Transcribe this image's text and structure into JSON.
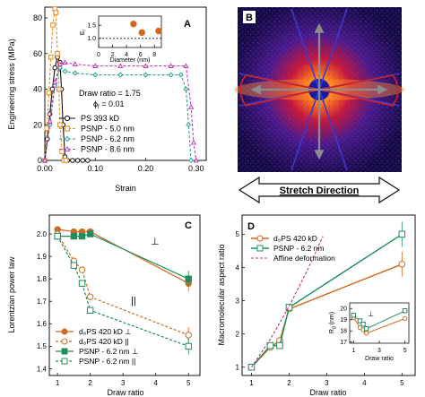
{
  "panel_letters": {
    "a": "A",
    "b": "B",
    "c": "C",
    "d": "D"
  },
  "stretch_direction": "Stretch Direction",
  "colors": {
    "ps": "#111111",
    "psnp50": "#e88a1a",
    "psnp62": "#2aa08e",
    "psnp86": "#c43bb7",
    "orange": "#d2691e",
    "green": "#1e8f5a",
    "magenta": "#c0307a",
    "arrow_gray": "#8c8c8c",
    "ellipse_red": "#d42020"
  },
  "chart_data": [
    {
      "id": "A",
      "type": "line",
      "xlabel": "Strain",
      "ylabel": "Engineering stress (MPa)",
      "xlim": [
        0.0,
        0.32
      ],
      "ylim": [
        0,
        85
      ],
      "xticks": [
        "0.00",
        "0.10",
        "0.20",
        "0.30"
      ],
      "yticks": [
        "0",
        "20",
        "40",
        "60",
        "80"
      ],
      "annotation": [
        "Draw ratio = 1.75",
        "ϕ_f = 0.01"
      ],
      "series": [
        {
          "name": "PS 393 kD",
          "marker": "circle-open",
          "x": [
            0,
            0.005,
            0.01,
            0.015,
            0.02,
            0.025,
            0.03,
            0.033,
            0.036,
            0.04,
            0.045,
            0.055,
            0.065,
            0.075,
            0.085
          ],
          "y": [
            0,
            12,
            26,
            40,
            52,
            58,
            55,
            40,
            20,
            2,
            0,
            0,
            0,
            0,
            0
          ]
        },
        {
          "name": "PSNP - 5.0 nm",
          "marker": "square-open",
          "x": [
            0,
            0.004,
            0.008,
            0.012,
            0.016,
            0.02,
            0.022,
            0.025,
            0.028,
            0.03,
            0.034,
            0.038,
            0.042
          ],
          "y": [
            0,
            18,
            38,
            58,
            76,
            85,
            83,
            60,
            40,
            20,
            5,
            0,
            0
          ]
        },
        {
          "name": "PSNP - 6.2 nm",
          "marker": "diamond-open",
          "x": [
            0,
            0.01,
            0.02,
            0.03,
            0.04,
            0.06,
            0.1,
            0.15,
            0.2,
            0.25,
            0.27,
            0.28,
            0.285,
            0.29
          ],
          "y": [
            0,
            20,
            42,
            52,
            50,
            49,
            48,
            48,
            48,
            48,
            48,
            40,
            20,
            0
          ]
        },
        {
          "name": "PSNP - 8.6 nm",
          "marker": "triangle-open",
          "x": [
            0,
            0.01,
            0.02,
            0.03,
            0.04,
            0.06,
            0.1,
            0.15,
            0.2,
            0.25,
            0.28,
            0.29,
            0.295,
            0.3
          ],
          "y": [
            0,
            22,
            44,
            54,
            55,
            54,
            53,
            53,
            53,
            53,
            53,
            30,
            10,
            0
          ]
        }
      ],
      "inset": {
        "ylabel": "E_r",
        "xlabel": "Diameter (nm)",
        "xlim": [
          0,
          9
        ],
        "ylim": [
          0.65,
          1.85
        ],
        "xticks": [
          "0",
          "2",
          "4",
          "6",
          "8"
        ],
        "yticks": [
          "1.0",
          "1.5"
        ],
        "points": [
          {
            "x": 5.0,
            "y": 1.55
          },
          {
            "x": 6.2,
            "y": 1.22
          },
          {
            "x": 8.6,
            "y": 1.28
          }
        ]
      }
    },
    {
      "id": "C",
      "type": "line",
      "xlabel": "Draw ratio",
      "ylabel": "Lorentzian power law",
      "xlim": [
        0.75,
        5.35
      ],
      "ylim": [
        1.37,
        2.08
      ],
      "xticks": [
        "1",
        "2",
        "3",
        "4",
        "5"
      ],
      "yticks": [
        "1.4",
        "1.5",
        "1.6",
        "1.7",
        "1.8",
        "1.9",
        "2.0"
      ],
      "symbol_perp": "⊥",
      "symbol_par": "||",
      "series": [
        {
          "name": "d₈PS 420 kD ⊥",
          "x": [
            1,
            1.5,
            1.75,
            2,
            5
          ],
          "y": [
            2.02,
            2.01,
            2.01,
            2.01,
            1.78
          ]
        },
        {
          "name": "d₈PS 420 kD ||",
          "x": [
            1,
            1.5,
            1.75,
            2,
            5
          ],
          "y": [
            2.0,
            1.88,
            1.84,
            1.72,
            1.55
          ]
        },
        {
          "name": "PSNP - 6.2 nm ⊥",
          "x": [
            1,
            1.5,
            1.75,
            2,
            5
          ],
          "y": [
            1.99,
            1.99,
            1.99,
            2.0,
            1.8
          ]
        },
        {
          "name": "PSNP - 6.2 nm ||",
          "x": [
            1,
            1.5,
            1.75,
            2,
            5
          ],
          "y": [
            1.99,
            1.86,
            1.78,
            1.66,
            1.5
          ]
        }
      ]
    },
    {
      "id": "D",
      "type": "line",
      "xlabel": "Draw ratio",
      "ylabel": "Macromolecular aspect ratio",
      "xlim": [
        0.75,
        5.35
      ],
      "ylim": [
        0.75,
        5.55
      ],
      "xticks": [
        "1",
        "2",
        "3",
        "4",
        "5"
      ],
      "yticks": [
        "1",
        "2",
        "3",
        "4",
        "5"
      ],
      "series": [
        {
          "name": "d₈PS 420 kD",
          "x": [
            1,
            1.5,
            1.75,
            2,
            5
          ],
          "y": [
            1.0,
            1.6,
            1.8,
            2.75,
            4.1
          ]
        },
        {
          "name": "PSNP - 6.2 nm",
          "x": [
            1,
            1.5,
            1.75,
            2,
            5
          ],
          "y": [
            1.0,
            1.65,
            1.65,
            2.8,
            5.0
          ]
        },
        {
          "name": "Affine deformation",
          "x": [
            1.0,
            1.5,
            2.0,
            2.5,
            2.9
          ],
          "y": [
            1.0,
            1.84,
            2.83,
            3.95,
            4.94
          ]
        }
      ],
      "inset": {
        "ylabel": "R_g (nm)",
        "xlabel": "Draw ratio",
        "symbol": "⊥",
        "xlim": [
          0.7,
          5.3
        ],
        "ylim": [
          16.9,
          20.5
        ],
        "xticks": [
          "1",
          "3",
          "5"
        ],
        "yticks": [
          "17",
          "18",
          "19",
          "20"
        ],
        "series": [
          {
            "name": "d₈PS 420 kD",
            "x": [
              1,
              1.5,
              1.75,
              2,
              5
            ],
            "y": [
              19.2,
              18.3,
              18.1,
              17.8,
              19.1
            ]
          },
          {
            "name": "PSNP - 6.2 nm",
            "x": [
              1,
              1.5,
              1.75,
              2,
              5
            ],
            "y": [
              19.4,
              18.9,
              18.6,
              18.2,
              19.8
            ]
          }
        ]
      }
    }
  ]
}
